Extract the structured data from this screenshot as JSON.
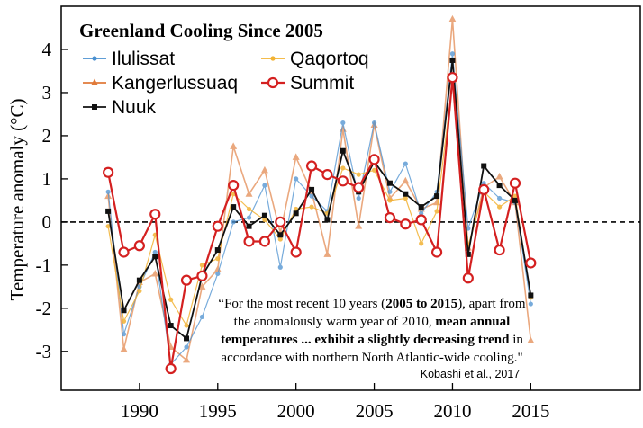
{
  "chart_data": {
    "type": "line",
    "title": "Greenland Cooling Since 2005",
    "ylabel": "Temperature anomaly (°C)",
    "xlabel": "",
    "xlim": [
      1985,
      2022
    ],
    "ylim": [
      -3.9,
      5
    ],
    "xticks": [
      1990,
      1995,
      2000,
      2005,
      2010,
      2015
    ],
    "yticks": [
      -3,
      -2,
      -1,
      0,
      1,
      2,
      3,
      4
    ],
    "x": [
      1988,
      1989,
      1990,
      1991,
      1992,
      1993,
      1994,
      1995,
      1996,
      1997,
      1998,
      1999,
      2000,
      2001,
      2002,
      2003,
      2004,
      2005,
      2006,
      2007,
      2008,
      2009,
      2010,
      2011,
      2012,
      2013,
      2014,
      2015
    ],
    "zero_line": 0,
    "series": [
      {
        "name": "Ilulissat",
        "color": "#4a90d0",
        "marker": "dot",
        "values": [
          0.7,
          -2.6,
          -1.5,
          -0.7,
          -3.3,
          -2.9,
          -2.2,
          -1.2,
          0.0,
          0.1,
          0.85,
          -1.05,
          1.0,
          0.6,
          0.25,
          2.3,
          0.55,
          2.3,
          0.7,
          1.35,
          0.2,
          0.7,
          3.9,
          -0.15,
          0.9,
          0.55,
          0.45,
          -1.9
        ]
      },
      {
        "name": "Kangerlussuaq",
        "color": "#e07a3a",
        "marker": "triangle",
        "values": [
          0.6,
          -2.95,
          -1.4,
          -1.2,
          -2.9,
          -3.2,
          -1.5,
          -1.1,
          1.75,
          0.65,
          1.2,
          -0.25,
          1.5,
          0.7,
          -0.75,
          2.15,
          -0.1,
          2.25,
          0.55,
          0.95,
          0.3,
          0.45,
          4.7,
          -0.6,
          0.8,
          1.05,
          0.45,
          -2.75
        ]
      },
      {
        "name": "Nuuk",
        "color": "#111111",
        "marker": "square",
        "values": [
          0.25,
          -2.05,
          -1.35,
          -0.8,
          -2.4,
          -2.7,
          -1.25,
          -0.65,
          0.35,
          -0.1,
          0.15,
          -0.3,
          0.2,
          0.75,
          0.05,
          1.65,
          0.7,
          1.4,
          0.9,
          0.65,
          0.35,
          0.6,
          3.75,
          -0.75,
          1.3,
          0.85,
          0.5,
          -1.7
        ]
      },
      {
        "name": "Qaqortoq",
        "color": "#f2b233",
        "marker": "dot",
        "values": [
          -0.1,
          -2.3,
          -1.6,
          -0.3,
          -1.8,
          -2.4,
          -1.0,
          -0.85,
          0.65,
          0.3,
          0.05,
          -0.4,
          0.3,
          0.35,
          0.2,
          1.25,
          1.1,
          1.2,
          0.5,
          0.55,
          -0.5,
          0.25,
          3.25,
          -0.55,
          0.7,
          0.35,
          0.6,
          -1.75
        ]
      },
      {
        "name": "Summit",
        "color": "#d42020",
        "marker": "ring",
        "values": [
          1.15,
          -0.7,
          -0.55,
          0.18,
          -3.4,
          -1.35,
          -1.25,
          -0.1,
          0.85,
          -0.45,
          -0.45,
          0.0,
          -0.7,
          1.3,
          1.1,
          0.95,
          0.8,
          1.45,
          0.1,
          -0.05,
          0.05,
          -0.7,
          3.35,
          -1.3,
          0.75,
          -0.65,
          0.9,
          -0.95
        ]
      }
    ],
    "legend": {
      "placement": "top-left",
      "entries": [
        "Ilulissat",
        "Qaqortoq",
        "Kangerlussuaq",
        "Summit",
        "Nuuk"
      ]
    },
    "annotation": {
      "quote_lines": [
        [
          {
            "t": "“For the most recent 10 years (",
            "b": false
          },
          {
            "t": "2005 to 2015",
            "b": true
          },
          {
            "t": "), apart from",
            "b": false
          }
        ],
        [
          {
            "t": "the anomalously warm year of 2010, ",
            "b": false
          },
          {
            "t": "mean annual",
            "b": true
          }
        ],
        [
          {
            "t": "temperatures ... exhibit a slightly decreasing trend",
            "b": true
          },
          {
            "t": " in",
            "b": false
          }
        ],
        [
          {
            "t": "accordance with northern North Atlantic-wide cooling.\"",
            "b": false
          }
        ]
      ],
      "citation": "Kobashi et al., 2017"
    }
  }
}
